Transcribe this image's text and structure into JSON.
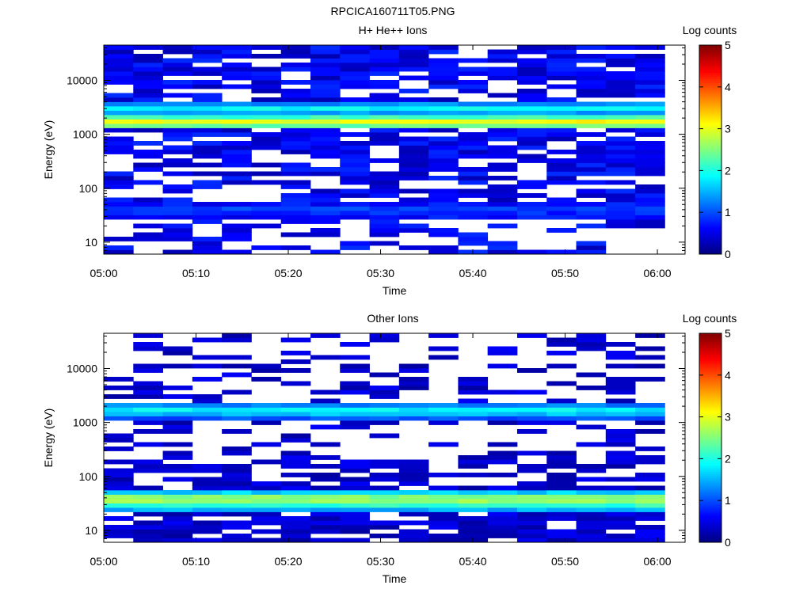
{
  "figure": {
    "title": "RPCICA160711T05.PNG"
  },
  "chart_data": [
    {
      "type": "heatmap",
      "title": "H+ He++ Ions",
      "xlabel": "Time",
      "ylabel": "Energy (eV)",
      "y_scale": "log",
      "ylim": [
        6,
        45000
      ],
      "xlim_minutes": [
        0,
        63
      ],
      "x_ticks": [
        {
          "label": "05:00",
          "minute": 0
        },
        {
          "label": "05:10",
          "minute": 10
        },
        {
          "label": "05:20",
          "minute": 20
        },
        {
          "label": "05:30",
          "minute": 30
        },
        {
          "label": "05:40",
          "minute": 40
        },
        {
          "label": "05:50",
          "minute": 50
        },
        {
          "label": "06:00",
          "minute": 60
        }
      ],
      "y_ticks": [
        {
          "label": "10",
          "value": 10
        },
        {
          "label": "100",
          "value": 100
        },
        {
          "label": "1000",
          "value": 1000
        },
        {
          "label": "10000",
          "value": 10000
        }
      ],
      "time_bins": 19,
      "time_step_min": 3.2,
      "energy_bins": 48,
      "energy_min_ev": 6,
      "energy_max_ev": 45000,
      "peak_bands": [
        {
          "energy_ev": 1700,
          "log_counts": 3.2
        },
        {
          "energy_ev": 3000,
          "log_counts": 1.9
        },
        {
          "energy_ev": 40,
          "log_counts": 1.0
        }
      ],
      "colorbar": {
        "label": "Log counts",
        "min": 0,
        "max": 5,
        "ticks": [
          "0",
          "1",
          "2",
          "3",
          "4",
          "5"
        ]
      }
    },
    {
      "type": "heatmap",
      "title": "Other Ions",
      "xlabel": "Time",
      "ylabel": "Energy (eV)",
      "y_scale": "log",
      "ylim": [
        6,
        45000
      ],
      "xlim_minutes": [
        0,
        63
      ],
      "x_ticks": [
        {
          "label": "05:00",
          "minute": 0
        },
        {
          "label": "05:10",
          "minute": 10
        },
        {
          "label": "05:20",
          "minute": 20
        },
        {
          "label": "05:30",
          "minute": 30
        },
        {
          "label": "05:40",
          "minute": 40
        },
        {
          "label": "05:50",
          "minute": 50
        },
        {
          "label": "06:00",
          "minute": 60
        }
      ],
      "y_ticks": [
        {
          "label": "10",
          "value": 10
        },
        {
          "label": "100",
          "value": 100
        },
        {
          "label": "1000",
          "value": 1000
        },
        {
          "label": "10000",
          "value": 10000
        }
      ],
      "time_bins": 19,
      "time_step_min": 3.2,
      "energy_bins": 48,
      "energy_min_ev": 6,
      "energy_max_ev": 45000,
      "peak_bands": [
        {
          "energy_ev": 1650,
          "log_counts": 2.0
        },
        {
          "energy_ev": 38,
          "log_counts": 3.0
        },
        {
          "energy_ev": 30,
          "log_counts": 2.2
        }
      ],
      "colorbar": {
        "label": "Log counts",
        "min": 0,
        "max": 5,
        "ticks": [
          "0",
          "1",
          "2",
          "3",
          "4",
          "5"
        ]
      }
    }
  ]
}
